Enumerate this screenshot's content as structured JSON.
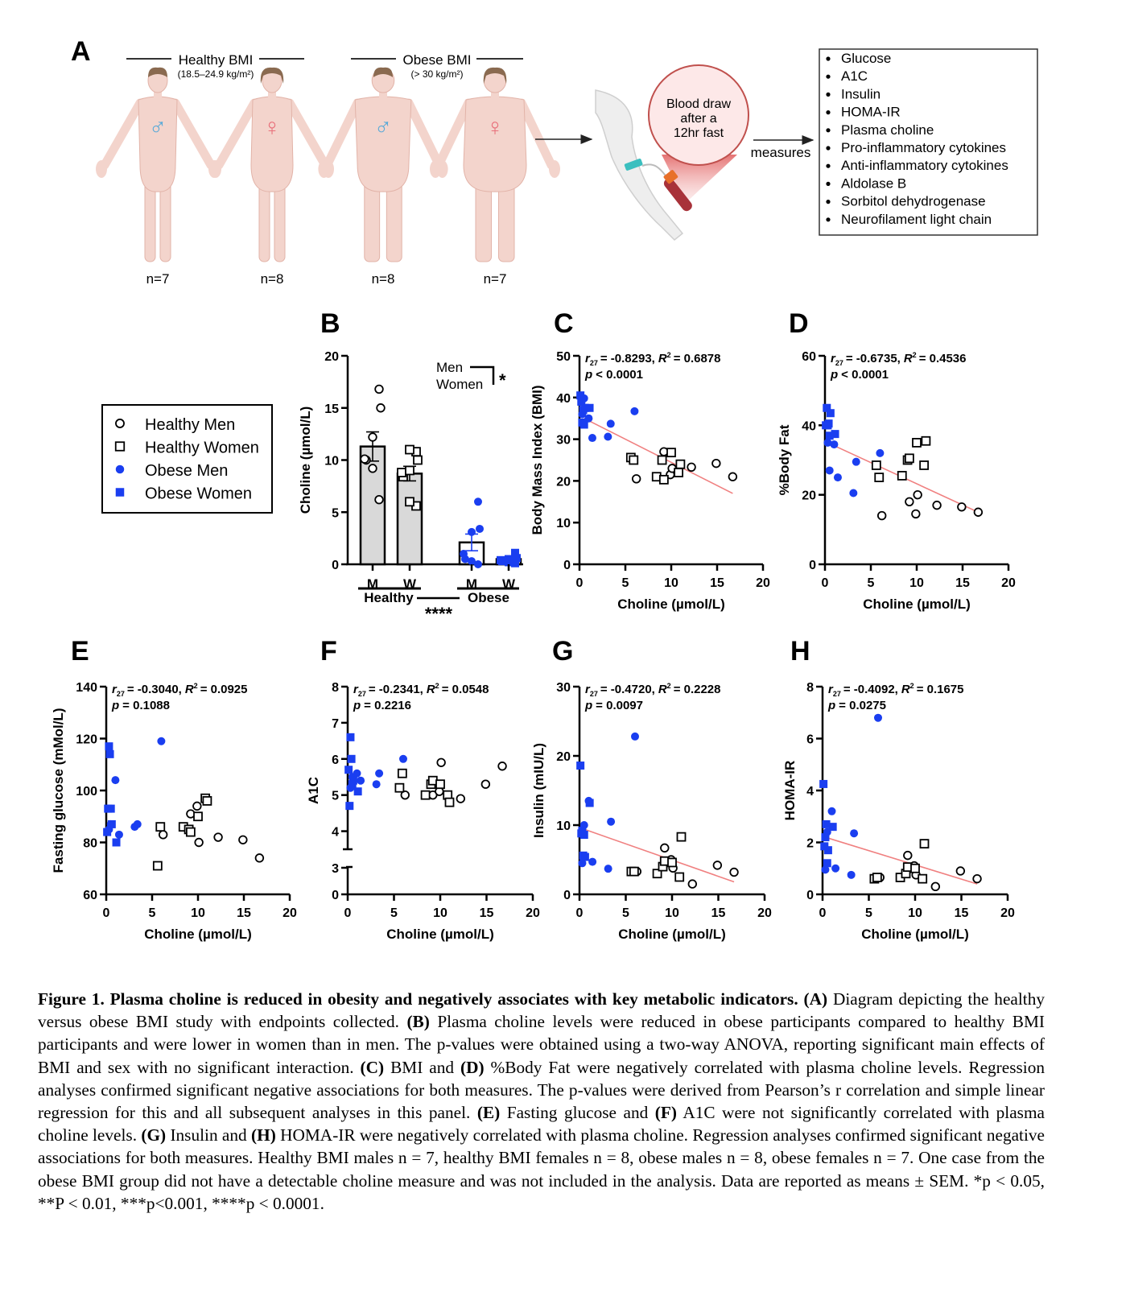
{
  "panel_a": {
    "letter": "A",
    "healthy_title": "Healthy BMI",
    "healthy_range": "(18.5–24.9 kg/m²)",
    "obese_title": "Obese BMI",
    "obese_range": "(> 30 kg/m²)",
    "groups": [
      {
        "sex": "male",
        "n": "n=7",
        "symbol": "♂"
      },
      {
        "sex": "female",
        "n": "n=8",
        "symbol": "♀"
      },
      {
        "sex": "male",
        "n": "n=8",
        "symbol": "♂"
      },
      {
        "sex": "female",
        "n": "n=7",
        "symbol": "♀"
      }
    ],
    "callout": [
      "Blood draw",
      "after a",
      "12hr fast"
    ],
    "arrow_label": "measures",
    "measures": [
      "Glucose",
      "A1C",
      "Insulin",
      "HOMA-IR",
      "Plasma choline",
      "Pro-inflammatory cytokines",
      "Anti-inflammatory cytokines",
      "Aldolase B",
      "Sorbitol dehydrogenase",
      "Neurofilament light chain"
    ],
    "colors": {
      "male": "#5aaad8",
      "female": "#e8717b",
      "skin": "#f3d4cc",
      "callout": "#c0504d"
    }
  },
  "legend": [
    {
      "label": "Healthy Men",
      "marker": "open-circle"
    },
    {
      "label": "Healthy Women",
      "marker": "open-square"
    },
    {
      "label": "Obese Men",
      "marker": "filled-circle"
    },
    {
      "label": "Obese Women",
      "marker": "filled-square"
    }
  ],
  "colors": {
    "obese": "#1a3ef0",
    "healthy": "#000000",
    "bar_fill": "#d9d9d9",
    "regression": "#f08080"
  },
  "chart_data": [
    {
      "panel": "B",
      "type": "bar",
      "ylabel": "Choline (µmol/L)",
      "ylim": [
        0,
        20
      ],
      "yticks": [
        "0",
        "5",
        "10",
        "15",
        "20"
      ],
      "categories": [
        "M",
        "W",
        "M",
        "W"
      ],
      "groups": [
        "Healthy",
        "Obese"
      ],
      "means": [
        11.3,
        8.7,
        2.1,
        0.5
      ],
      "sem": [
        1.4,
        0.7,
        0.8,
        0.2
      ],
      "points": [
        [
          6.2,
          9.2,
          10.0,
          10.1,
          12.2,
          15.0,
          16.8
        ],
        [
          5.6,
          6.0,
          8.4,
          8.8,
          9.0,
          10.0,
          10.8,
          11.0
        ],
        [
          0.0,
          0.3,
          0.5,
          1.0,
          3.1,
          3.4,
          6.0
        ],
        [
          0.1,
          0.2,
          0.3,
          0.4,
          0.5,
          0.6,
          1.1
        ]
      ],
      "sex_label_men": "Men",
      "sex_label_women": "Women",
      "sex_sig": "*",
      "bmi_sig": "****"
    },
    {
      "panel": "C",
      "type": "scatter",
      "xlabel": "Choline (µmol/L)",
      "ylabel": "Body Mass Index (BMI)",
      "xlim": [
        0,
        20
      ],
      "ylim": [
        0,
        50
      ],
      "xticks": [
        "0",
        "5",
        "10",
        "15",
        "20"
      ],
      "yticks": [
        "0",
        "10",
        "20",
        "30",
        "40",
        "50"
      ],
      "stats": {
        "r_sub": "27",
        "r": "= -0.8293,",
        "r2": "= 0.6878",
        "p": "< 0.0001"
      },
      "regression": [
        [
          0.5,
          35
        ],
        [
          16.7,
          17
        ]
      ],
      "series": [
        {
          "name": "Healthy Men",
          "x": [
            6.2,
            9.2,
            9.9,
            10.1,
            12.2,
            14.9,
            16.7
          ],
          "y": [
            20.5,
            27,
            21.5,
            23,
            23.3,
            24.2,
            21
          ]
        },
        {
          "name": "Healthy Women",
          "x": [
            5.6,
            5.9,
            8.4,
            9.0,
            9.2,
            10.0,
            10.8,
            11.0
          ],
          "y": [
            25.6,
            25,
            21,
            25,
            20.3,
            26.8,
            22,
            24
          ]
        },
        {
          "name": "Obese Men",
          "x": [
            0.3,
            0.5,
            1.0,
            1.4,
            3.1,
            3.4,
            6.0
          ],
          "y": [
            36,
            39.8,
            35,
            30.3,
            30.6,
            33.7,
            36.7
          ]
        },
        {
          "name": "Obese Women",
          "x": [
            0.1,
            0.2,
            0.3,
            0.4,
            0.5,
            0.6,
            1.1
          ],
          "y": [
            40.5,
            39,
            34,
            37,
            33.5,
            37.5,
            37.5
          ]
        }
      ]
    },
    {
      "panel": "D",
      "type": "scatter",
      "xlabel": "Choline (µmol/L)",
      "ylabel": "%Body Fat",
      "xlim": [
        0,
        20
      ],
      "ylim": [
        0,
        60
      ],
      "xticks": [
        "0",
        "5",
        "10",
        "15",
        "20"
      ],
      "yticks": [
        "0",
        "20",
        "40",
        "60"
      ],
      "stats": {
        "r_sub": "27",
        "r": "= -0.6735,",
        "r2": "= 0.4536",
        "p": "< 0.0001"
      },
      "regression": [
        [
          0.3,
          35
        ],
        [
          16.7,
          15
        ]
      ],
      "series": [
        {
          "name": "Healthy Men",
          "x": [
            6.2,
            9.2,
            9.9,
            10.1,
            12.2,
            14.9,
            16.7
          ],
          "y": [
            14,
            18,
            14.5,
            20,
            17,
            16.5,
            15
          ]
        },
        {
          "name": "Healthy Women",
          "x": [
            5.6,
            5.9,
            8.4,
            9.0,
            9.2,
            10.0,
            10.8,
            11.0
          ],
          "y": [
            28.5,
            25,
            25.5,
            30,
            30.5,
            35,
            28.5,
            35.5
          ]
        },
        {
          "name": "Obese Men",
          "x": [
            0.3,
            0.5,
            1.0,
            1.4,
            3.1,
            3.4,
            6.0
          ],
          "y": [
            35,
            27,
            34.5,
            25,
            20.5,
            29.5,
            32
          ]
        },
        {
          "name": "Obese Women",
          "x": [
            0.1,
            0.2,
            0.3,
            0.4,
            0.5,
            0.6,
            1.1
          ],
          "y": [
            40,
            45,
            40,
            40.5,
            37,
            43.5,
            37.5
          ]
        }
      ]
    },
    {
      "panel": "E",
      "type": "scatter",
      "xlabel": "Choline (µmol/L)",
      "ylabel": "Fasting glucose (mMol/L)",
      "xlim": [
        0,
        20
      ],
      "ylim": [
        60,
        140
      ],
      "xticks": [
        "0",
        "5",
        "10",
        "15",
        "20"
      ],
      "yticks": [
        "60",
        "80",
        "100",
        "120",
        "140"
      ],
      "stats": {
        "r_sub": "27",
        "r": "= -0.3040,",
        "r2": "= 0.0925",
        "p": "= 0.1088"
      },
      "regression": null,
      "series": [
        {
          "name": "Healthy Men",
          "x": [
            6.2,
            9.2,
            9.9,
            10.1,
            12.2,
            14.9,
            16.7
          ],
          "y": [
            83,
            91,
            94,
            80,
            82,
            81,
            74
          ]
        },
        {
          "name": "Healthy Women",
          "x": [
            5.6,
            5.9,
            8.4,
            9.0,
            9.2,
            10.0,
            10.8,
            11.0
          ],
          "y": [
            71,
            86,
            86,
            85,
            84,
            90,
            97,
            96
          ]
        },
        {
          "name": "Obese Men",
          "x": [
            0.3,
            0.5,
            1.0,
            1.4,
            3.1,
            3.4,
            6.0
          ],
          "y": [
            85,
            87,
            104,
            83,
            86,
            87,
            119
          ]
        },
        {
          "name": "Obese Women",
          "x": [
            0.1,
            0.2,
            0.3,
            0.4,
            0.5,
            0.6,
            1.1
          ],
          "y": [
            84,
            93,
            117,
            114,
            93,
            87,
            80
          ]
        }
      ]
    },
    {
      "panel": "F",
      "type": "scatter",
      "xlabel": "Choline (µmol/L)",
      "ylabel": "A1C",
      "xlim": [
        0,
        20
      ],
      "ylim": [
        0,
        8
      ],
      "axis_break": [
        3,
        3.5
      ],
      "xticks": [
        "0",
        "5",
        "10",
        "15",
        "20"
      ],
      "yticks": [
        "0",
        "3",
        "4",
        "5",
        "6",
        "7",
        "8"
      ],
      "stats": {
        "r_sub": "27",
        "r": "= -0.2341,",
        "r2": "= 0.0548",
        "p": "= 0.2216"
      },
      "regression": null,
      "series": [
        {
          "name": "Healthy Men",
          "x": [
            6.2,
            9.2,
            9.9,
            10.1,
            12.2,
            14.9,
            16.7
          ],
          "y": [
            5.0,
            5.0,
            5.1,
            5.9,
            4.9,
            5.3,
            5.8
          ]
        },
        {
          "name": "Healthy Women",
          "x": [
            5.6,
            5.9,
            8.4,
            9.0,
            9.2,
            10.0,
            10.8,
            11.0
          ],
          "y": [
            5.2,
            5.6,
            5.0,
            5.3,
            5.4,
            5.3,
            5.0,
            4.8
          ]
        },
        {
          "name": "Obese Men",
          "x": [
            0.3,
            0.5,
            1.0,
            1.4,
            3.1,
            3.4,
            6.0
          ],
          "y": [
            5.2,
            5.5,
            5.6,
            5.4,
            5.3,
            5.6,
            6.0
          ]
        },
        {
          "name": "Obese Women",
          "x": [
            0.1,
            0.2,
            0.3,
            0.4,
            0.5,
            0.6,
            1.1
          ],
          "y": [
            5.7,
            4.7,
            6.6,
            6.0,
            5.3,
            5.4,
            5.1
          ]
        }
      ]
    },
    {
      "panel": "G",
      "type": "scatter",
      "xlabel": "Choline (µmol/L)",
      "ylabel": "Insulin (mIU/L)",
      "xlim": [
        0,
        20
      ],
      "ylim": [
        0,
        30
      ],
      "xticks": [
        "0",
        "5",
        "10",
        "15",
        "20"
      ],
      "yticks": [
        "0",
        "10",
        "20",
        "30"
      ],
      "stats": {
        "r_sub": "27",
        "r": "= -0.4720,",
        "r2": "= 0.2228",
        "p": "= 0.0097"
      },
      "regression": [
        [
          0.3,
          9.5
        ],
        [
          16.7,
          1.8
        ]
      ],
      "series": [
        {
          "name": "Healthy Men",
          "x": [
            6.2,
            9.2,
            9.9,
            10.1,
            12.2,
            14.9,
            16.7
          ],
          "y": [
            3.3,
            6.7,
            5.0,
            3.8,
            1.5,
            4.2,
            3.2
          ]
        },
        {
          "name": "Healthy Women",
          "x": [
            5.6,
            5.9,
            8.4,
            9.0,
            9.2,
            10.0,
            10.8,
            11.0
          ],
          "y": [
            3.3,
            3.3,
            3.0,
            4.0,
            4.8,
            4.6,
            2.5,
            8.3
          ]
        },
        {
          "name": "Obese Men",
          "x": [
            0.3,
            0.5,
            1.0,
            1.4,
            3.1,
            3.4,
            6.0
          ],
          "y": [
            4.5,
            10,
            13.5,
            4.7,
            3.7,
            10.5,
            22.8
          ]
        },
        {
          "name": "Obese Women",
          "x": [
            0.1,
            0.2,
            0.3,
            0.4,
            0.5,
            0.6,
            1.1
          ],
          "y": [
            18.6,
            8.8,
            9.2,
            5.6,
            8.6,
            5.4,
            13.2
          ]
        }
      ]
    },
    {
      "panel": "H",
      "type": "scatter",
      "xlabel": "Choline (µmol/L)",
      "ylabel": "HOMA-IR",
      "xlim": [
        0,
        20
      ],
      "ylim": [
        0,
        8
      ],
      "xticks": [
        "0",
        "5",
        "10",
        "15",
        "20"
      ],
      "yticks": [
        "0",
        "2",
        "4",
        "6",
        "8"
      ],
      "stats": {
        "r_sub": "27",
        "r": "= -0.4092,",
        "r2": "= 0.1675",
        "p": "= 0.0275"
      },
      "regression": [
        [
          0.3,
          2.2
        ],
        [
          16.7,
          0.4
        ]
      ],
      "series": [
        {
          "name": "Healthy Men",
          "x": [
            6.2,
            9.2,
            9.9,
            10.1,
            12.2,
            14.9,
            16.7
          ],
          "y": [
            0.65,
            1.5,
            1.1,
            0.75,
            0.3,
            0.9,
            0.6
          ]
        },
        {
          "name": "Healthy Women",
          "x": [
            5.6,
            5.9,
            8.4,
            9.0,
            9.2,
            10.0,
            10.8,
            11.0
          ],
          "y": [
            0.6,
            0.65,
            0.65,
            0.8,
            1.05,
            1.0,
            0.6,
            1.95
          ]
        },
        {
          "name": "Obese Men",
          "x": [
            0.3,
            0.5,
            1.0,
            1.4,
            3.1,
            3.4,
            6.0
          ],
          "y": [
            0.95,
            2.4,
            3.2,
            1.0,
            0.75,
            2.35,
            6.8
          ]
        },
        {
          "name": "Obese Women",
          "x": [
            0.1,
            0.2,
            0.3,
            0.4,
            0.5,
            0.6,
            1.1
          ],
          "y": [
            4.25,
            1.85,
            2.2,
            2.7,
            1.2,
            1.7,
            2.6
          ]
        }
      ]
    }
  ],
  "caption": [
    {
      "text": "Figure 1. Plasma choline is reduced in obesity and negatively associates with key metabolic indicators.",
      "bold": true
    },
    {
      "text": " ",
      "bold": false
    },
    {
      "text": "(A)",
      "bold": true
    },
    {
      "text": " Diagram depicting the healthy versus obese BMI study with endpoints collected. ",
      "bold": false
    },
    {
      "text": "(B)",
      "bold": true
    },
    {
      "text": " Plasma choline levels were reduced in obese participants compared to healthy BMI participants and were lower in women than in men. The p-values were obtained using a two-way ANOVA, reporting significant main effects of BMI and sex with no significant interaction.  ",
      "bold": false
    },
    {
      "text": "(C)",
      "bold": true
    },
    {
      "text": " BMI and ",
      "bold": false
    },
    {
      "text": "(D)",
      "bold": true
    },
    {
      "text": " %Body Fat were negatively correlated with plasma choline levels. Regression analyses confirmed significant negative associations for both measures. The p-values were derived from Pearson’s r correlation and simple linear regression for this and all subsequent analyses in this panel. ",
      "bold": false
    },
    {
      "text": "(E)",
      "bold": true
    },
    {
      "text": " Fasting glucose and ",
      "bold": false
    },
    {
      "text": "(F)",
      "bold": true
    },
    {
      "text": " A1C were not significantly correlated with plasma choline levels. ",
      "bold": false
    },
    {
      "text": "(G)",
      "bold": true
    },
    {
      "text": " Insulin and ",
      "bold": false
    },
    {
      "text": "(H)",
      "bold": true
    },
    {
      "text": " HOMA-IR were negatively correlated with plasma choline. Regression analyses confirmed significant negative associations for both measures. Healthy BMI males n = 7, healthy BMI females n = 8, obese males n = 8, obese females n = 7. One case from the obese BMI group did not have a detectable choline measure and was not included in the analysis. Data are reported as means ± SEM. *p < 0.05, **P < 0.01, ***p<0.001, ****p < 0.0001.",
      "bold": false
    }
  ]
}
